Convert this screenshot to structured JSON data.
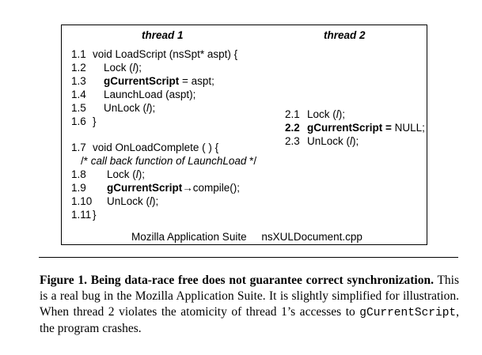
{
  "figure": {
    "thread1_title": "thread 1",
    "thread2_title": "thread 2",
    "thread1": [
      {
        "num": "1.1",
        "segments": [
          {
            "text": "void LoadScript (nsSpt* aspt) {",
            "style": "normal"
          }
        ]
      },
      {
        "num": "1.2",
        "segments": [
          {
            "text": "Lock (",
            "style": "normal"
          },
          {
            "text": "l",
            "style": "italic"
          },
          {
            "text": ");",
            "style": "normal"
          }
        ]
      },
      {
        "num": "1.3",
        "segments": [
          {
            "text": "gCurrentScript",
            "style": "bold"
          },
          {
            "text": " = aspt;",
            "style": "normal"
          }
        ]
      },
      {
        "num": "1.4",
        "segments": [
          {
            "text": "LaunchLoad (aspt);",
            "style": "normal"
          }
        ]
      },
      {
        "num": "1.5",
        "segments": [
          {
            "text": "UnLock (",
            "style": "normal"
          },
          {
            "text": "l",
            "style": "italic"
          },
          {
            "text": ");",
            "style": "normal"
          }
        ]
      },
      {
        "num": "1.6",
        "segments": [
          {
            "text": "}",
            "style": "normal"
          }
        ]
      },
      {
        "num": "1.7",
        "segments": [
          {
            "text": "void OnLoadComplete ( ) {",
            "style": "normal"
          }
        ]
      },
      {
        "num": "",
        "segments": [
          {
            "text": "/* ",
            "style": "normal"
          },
          {
            "text": "call back function of LaunchLoad",
            "style": "italic"
          },
          {
            "text": " */",
            "style": "normal"
          }
        ]
      },
      {
        "num": "1.8",
        "segments": [
          {
            "text": "Lock (",
            "style": "normal"
          },
          {
            "text": "l",
            "style": "italic"
          },
          {
            "text": ");",
            "style": "normal"
          }
        ]
      },
      {
        "num": "1.9",
        "segments": [
          {
            "text": "gCurrentScript",
            "style": "bold"
          },
          {
            "text": "→",
            "style": "normal"
          },
          {
            "text": "compile();",
            "style": "normal"
          }
        ]
      },
      {
        "num": "1.10",
        "segments": [
          {
            "text": "UnLock (",
            "style": "normal"
          },
          {
            "text": "l",
            "style": "italic"
          },
          {
            "text": ");",
            "style": "normal"
          }
        ]
      },
      {
        "num": "1.11",
        "segments": [
          {
            "text": "}",
            "style": "normal"
          }
        ]
      }
    ],
    "thread2": [
      {
        "num": "2.1",
        "segments": [
          {
            "text": "Lock (",
            "style": "normal"
          },
          {
            "text": "l",
            "style": "italic"
          },
          {
            "text": ");",
            "style": "normal"
          }
        ]
      },
      {
        "num": "2.2",
        "num_bold": true,
        "segments": [
          {
            "text": "gCurrentScript =",
            "style": "bold"
          },
          {
            "text": " NULL;",
            "style": "normal"
          }
        ]
      },
      {
        "num": "2.3",
        "segments": [
          {
            "text": "UnLock (",
            "style": "normal"
          },
          {
            "text": "l",
            "style": "italic"
          },
          {
            "text": ");",
            "style": "normal"
          }
        ]
      }
    ],
    "source_app": "Mozilla Application Suite",
    "source_file": "nsXULDocument.cpp"
  },
  "caption": {
    "label": "Figure 1.",
    "bold_text": "Being data-race free does not guarantee correct synchronization.",
    "text_before_code": "This is a real bug in the Mozilla Application Suite. It is slightly simplified for illustration. When thread 2 violates the atomicity of thread 1’s accesses to",
    "code": "gCurrentScript",
    "text_after_code": ", the program crashes."
  }
}
